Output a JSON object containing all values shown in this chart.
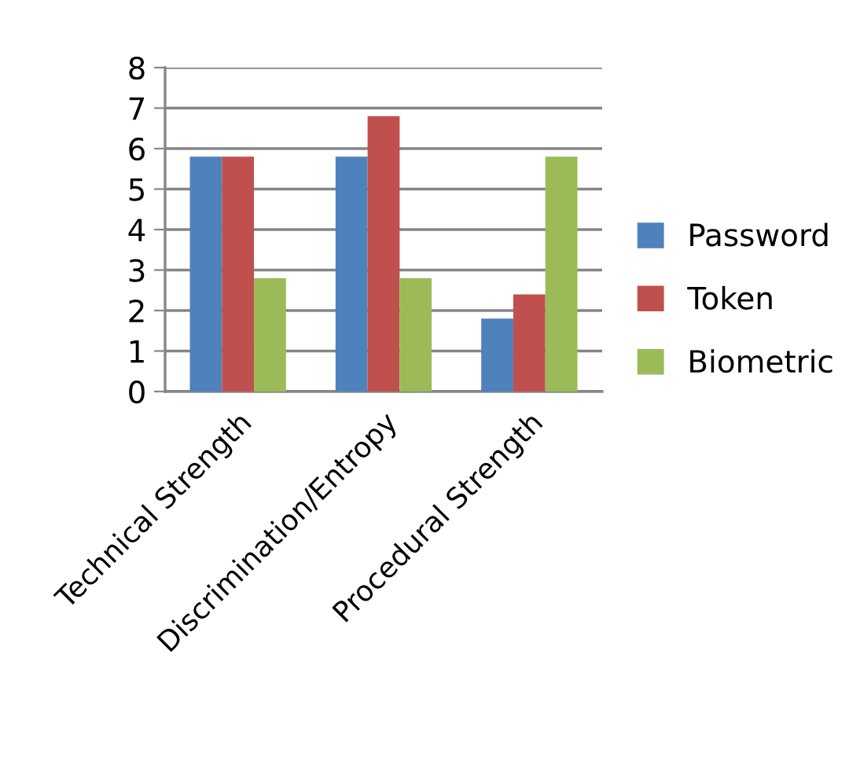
{
  "chart_data": {
    "type": "bar",
    "categories": [
      "Technical Strength",
      "Discrimination/Entropy",
      "Procedural Strength"
    ],
    "series": [
      {
        "name": "Password",
        "color": "#4f81bd",
        "values": [
          5.8,
          5.8,
          1.8
        ]
      },
      {
        "name": "Token",
        "color": "#c0504d",
        "values": [
          5.8,
          6.8,
          2.4
        ]
      },
      {
        "name": "Biometric",
        "color": "#9bbb59",
        "values": [
          2.8,
          2.8,
          5.8
        ]
      }
    ],
    "ylim": [
      0,
      8
    ],
    "yticks": [
      0,
      1,
      2,
      3,
      4,
      5,
      6,
      7,
      8
    ],
    "grid": "y",
    "legend": "right"
  }
}
